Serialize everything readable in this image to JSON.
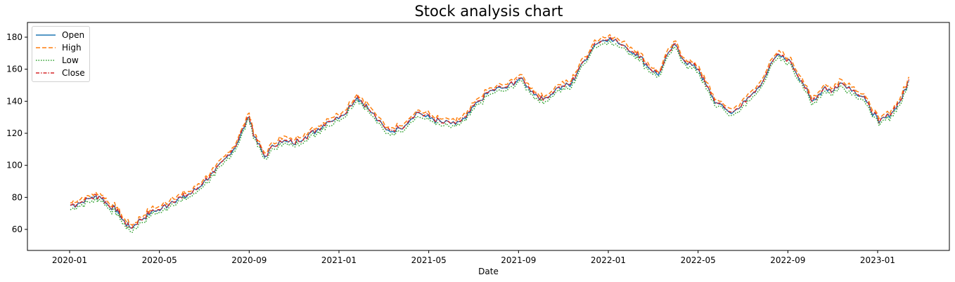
{
  "chart_data": {
    "type": "line",
    "title": "Stock analysis chart",
    "xlabel": "Date",
    "ylabel": "",
    "ylim": [
      47,
      188
    ],
    "yticks": [
      60,
      80,
      100,
      120,
      140,
      160,
      180
    ],
    "xticks": [
      "2020-01",
      "2020-05",
      "2020-09",
      "2021-01",
      "2021-05",
      "2021-09",
      "2022-01",
      "2022-05",
      "2022-09",
      "2023-01"
    ],
    "grid": false,
    "legend_position": "upper left",
    "legend": [
      "Open",
      "High",
      "Low",
      "Close"
    ],
    "series_styles": [
      {
        "name": "Open",
        "color": "#1f77b4",
        "dash": ""
      },
      {
        "name": "High",
        "color": "#ff7f0e",
        "dash": "6,3"
      },
      {
        "name": "Low",
        "color": "#2ca02c",
        "dash": "1.5,2"
      },
      {
        "name": "Close",
        "color": "#d62728",
        "dash": "5,2,1.5,2"
      }
    ],
    "x": [
      "2020-01-02",
      "2020-01-15",
      "2020-02-01",
      "2020-02-12",
      "2020-02-24",
      "2020-03-05",
      "2020-03-12",
      "2020-03-23",
      "2020-04-06",
      "2020-04-20",
      "2020-05-04",
      "2020-05-18",
      "2020-06-01",
      "2020-06-15",
      "2020-07-01",
      "2020-07-15",
      "2020-07-31",
      "2020-08-14",
      "2020-09-01",
      "2020-09-08",
      "2020-09-22",
      "2020-10-12",
      "2020-10-30",
      "2020-11-16",
      "2020-12-01",
      "2020-12-15",
      "2021-01-04",
      "2021-01-26",
      "2021-02-10",
      "2021-03-04",
      "2021-03-22",
      "2021-04-15",
      "2021-05-03",
      "2021-05-18",
      "2021-06-07",
      "2021-06-21",
      "2021-07-07",
      "2021-07-26",
      "2021-08-16",
      "2021-09-03",
      "2021-09-20",
      "2021-10-04",
      "2021-10-25",
      "2021-11-10",
      "2021-11-22",
      "2021-12-13",
      "2022-01-03",
      "2022-01-27",
      "2022-02-10",
      "2022-02-24",
      "2022-03-08",
      "2022-03-29",
      "2022-04-14",
      "2022-05-02",
      "2022-05-12",
      "2022-05-26",
      "2022-06-16",
      "2022-07-05",
      "2022-07-20",
      "2022-08-17",
      "2022-09-02",
      "2022-09-20",
      "2022-10-03",
      "2022-10-21",
      "2022-11-01",
      "2022-11-10",
      "2022-11-30",
      "2022-12-16",
      "2023-01-03",
      "2023-01-20",
      "2023-02-02",
      "2023-02-13"
    ],
    "series": [
      {
        "name": "Close",
        "values": [
          75,
          77,
          80,
          81,
          75,
          72,
          66,
          61,
          66,
          71,
          73,
          78,
          80,
          83,
          90,
          96,
          105,
          113,
          131,
          118,
          106,
          116,
          114,
          118,
          122,
          127,
          131,
          143,
          136,
          122,
          123,
          133,
          130,
          127,
          126,
          130,
          140,
          147,
          149,
          155,
          146,
          141,
          149,
          150,
          160,
          176,
          180,
          173,
          170,
          162,
          157,
          176,
          165,
          160,
          150,
          139,
          133,
          140,
          148,
          169,
          166,
          153,
          140,
          149,
          146,
          152,
          147,
          140,
          127,
          133,
          141,
          153
        ]
      }
    ],
    "series_offsets": {
      "Open": -0.3,
      "High": 1.8,
      "Low": -2.2,
      "Close": 0
    }
  }
}
